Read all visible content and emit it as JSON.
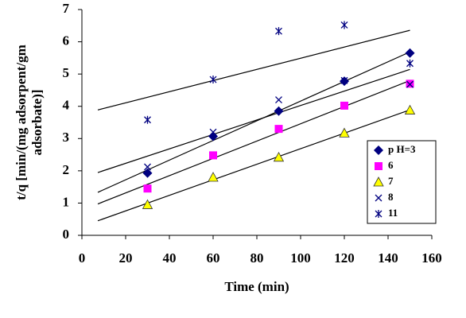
{
  "chart_data": {
    "type": "scatter",
    "xlabel": "Time (min)",
    "ylabel": [
      "t/q [min/(mg adsorpent/gm",
      "adsorbate)]"
    ],
    "x": [
      30,
      60,
      90,
      120,
      150
    ],
    "series": [
      {
        "name": "p H=3",
        "color": "#000080",
        "marker": "diamond",
        "values": [
          1.93,
          3.07,
          3.85,
          4.78,
          5.65
        ]
      },
      {
        "name": "6",
        "color": "#ff00ff",
        "marker": "square",
        "values": [
          1.45,
          2.48,
          3.3,
          4.02,
          4.7
        ]
      },
      {
        "name": "7",
        "color": "#ffff00",
        "marker": "triangle",
        "values": [
          0.95,
          1.8,
          2.42,
          3.17,
          3.88
        ]
      },
      {
        "name": "8",
        "color": "#000080",
        "marker": "x",
        "values": [
          2.12,
          3.2,
          4.2,
          4.8,
          4.68
        ]
      },
      {
        "name": "11",
        "color": "#000080",
        "marker": "star",
        "values": [
          3.58,
          4.83,
          6.33,
          6.52,
          5.33
        ]
      }
    ],
    "trendline": true,
    "xlim": [
      0,
      160
    ],
    "xticks": [
      0,
      20,
      40,
      60,
      80,
      100,
      120,
      140,
      160
    ],
    "ylim": [
      0,
      7
    ],
    "yticks": [
      0,
      1,
      2,
      3,
      4,
      5,
      6,
      7
    ],
    "legend": "right"
  }
}
